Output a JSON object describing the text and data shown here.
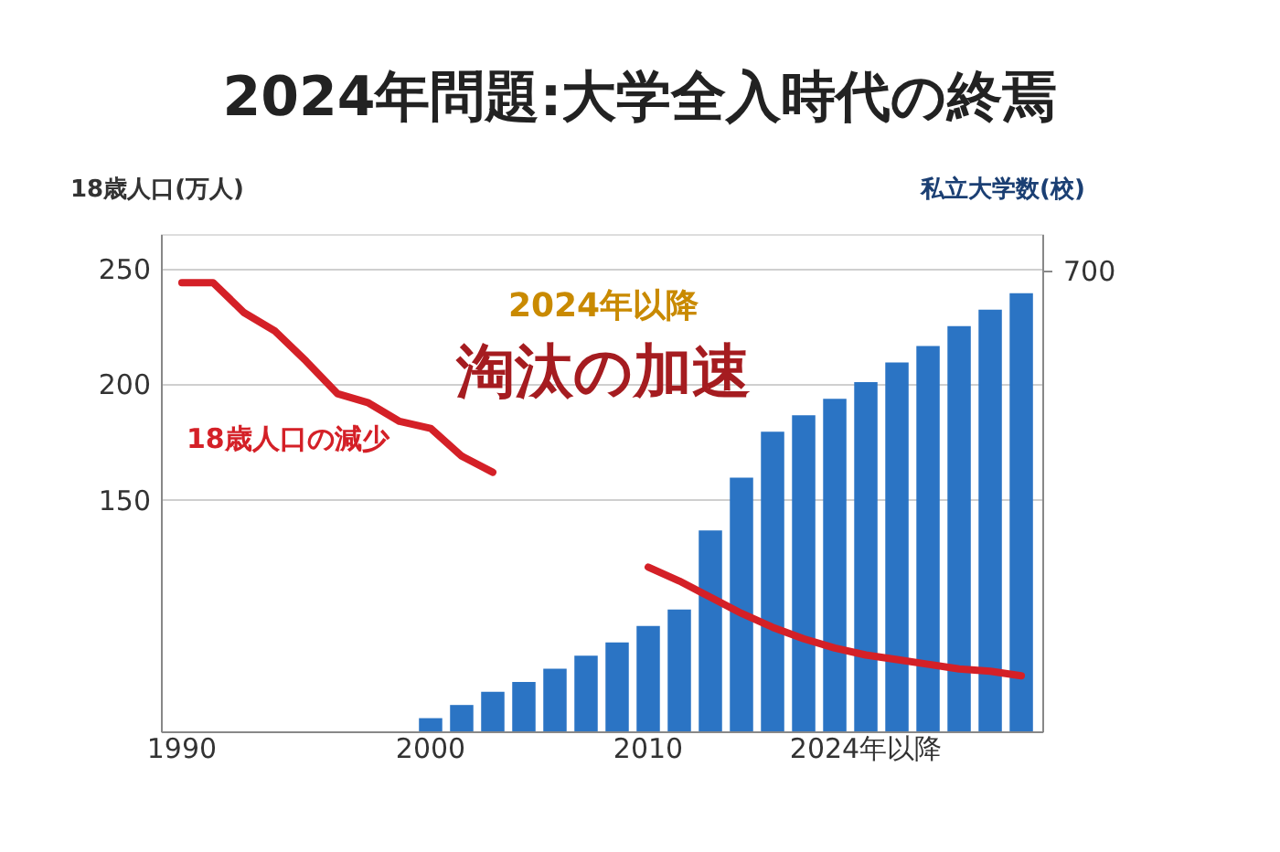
{
  "chart_data": {
    "type": "bar",
    "title": "2024年問題:大学全入時代の終焉",
    "ylabel": "18歳人口(万人)",
    "y2label": "私立大学数(校)",
    "categories": [
      "1990",
      null,
      null,
      null,
      null,
      null,
      null,
      null,
      "2000",
      null,
      null,
      null,
      null,
      null,
      null,
      "2010",
      null,
      null,
      null,
      null,
      null,
      null,
      "2024年以降",
      null,
      null,
      null,
      null,
      null
    ],
    "series": [
      {
        "name": "18歳人口の減少",
        "type": "line",
        "color": "#d42027",
        "values": [
          244,
          244,
          231,
          223,
          210,
          196,
          192,
          184,
          181,
          169,
          162,
          null,
          null,
          null,
          null,
          121,
          115,
          108,
          101,
          95,
          90,
          86,
          83,
          81,
          79,
          77,
          76,
          74
        ]
      },
      {
        "axis": "y2",
        "color": "#2b74c4",
        "values": [
          null,
          null,
          null,
          null,
          null,
          null,
          null,
          null,
          20,
          40,
          60,
          75,
          95,
          115,
          135,
          160,
          185,
          305,
          385,
          455,
          480,
          505,
          530,
          560,
          585,
          615,
          640,
          665
        ]
      }
    ],
    "ylim": [
      50,
      265
    ],
    "yticks": [
      150,
      200,
      250
    ],
    "y2lim": [
      0,
      755
    ],
    "y2ticks": [
      700
    ],
    "grid": "y",
    "marker": "none",
    "line_style": "solid",
    "annotations": [
      "2024年以降",
      "淘汰の加速"
    ]
  }
}
